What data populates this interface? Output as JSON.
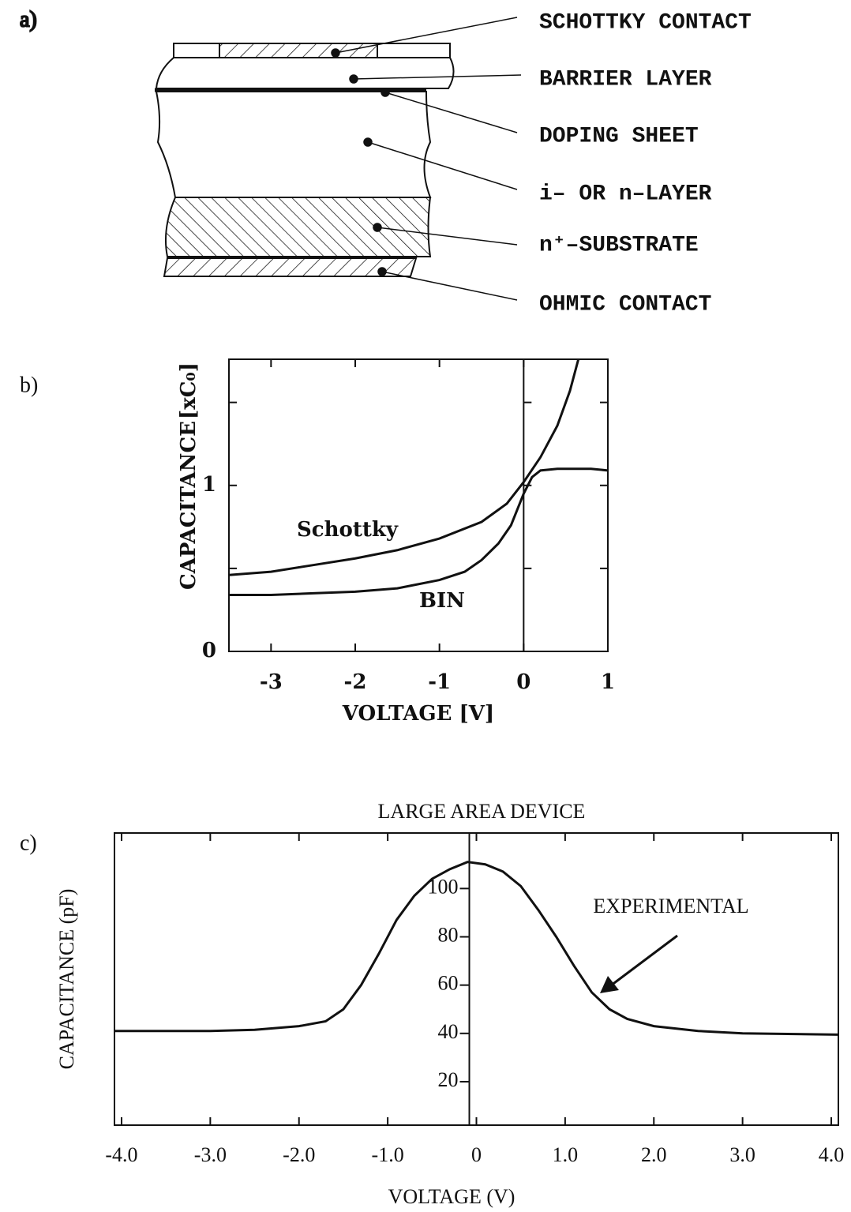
{
  "diagram": {
    "panel_label": "a)",
    "layers": [
      {
        "label": "SCHOTTKY CONTACT"
      },
      {
        "label": "BARRIER LAYER"
      },
      {
        "label": "DOPING SHEET"
      },
      {
        "label": "i– OR n–LAYER"
      },
      {
        "label": "n⁺–SUBSTRATE"
      },
      {
        "label": "OHMIC CONTACT"
      }
    ]
  },
  "chart_data": [
    {
      "type": "line",
      "panel_label": "b)",
      "xlabel": "VOLTAGE   [V]",
      "ylabel": "CAPACITANCE",
      "yunit": "[xC₀]",
      "xlim": [
        -3.5,
        1
      ],
      "ylim": [
        0,
        1.76
      ],
      "xticks": [
        -3,
        -2,
        -1,
        0,
        1
      ],
      "yticks": [
        0,
        1
      ],
      "yminor_ticks": [
        0.5,
        1.5
      ],
      "yaxis_at_x": 0,
      "ytick_position": "left",
      "series": [
        {
          "name": "Schottky",
          "color": "#111",
          "x": [
            -3.5,
            -3,
            -2.5,
            -2,
            -1.5,
            -1,
            -0.5,
            -0.2,
            0,
            0.2,
            0.4,
            0.55,
            0.65
          ],
          "values": [
            0.46,
            0.48,
            0.52,
            0.56,
            0.61,
            0.68,
            0.78,
            0.89,
            1.02,
            1.17,
            1.36,
            1.57,
            1.76
          ]
        },
        {
          "name": "BIN",
          "color": "#111",
          "x": [
            -3.5,
            -3,
            -2.5,
            -2,
            -1.5,
            -1,
            -0.7,
            -0.5,
            -0.3,
            -0.15,
            0,
            0.1,
            0.2,
            0.4,
            0.6,
            0.8,
            1
          ],
          "values": [
            0.34,
            0.34,
            0.35,
            0.36,
            0.38,
            0.43,
            0.48,
            0.55,
            0.65,
            0.76,
            0.95,
            1.05,
            1.09,
            1.1,
            1.1,
            1.1,
            1.09
          ]
        }
      ]
    },
    {
      "type": "line",
      "panel_label": "c)",
      "title": "LARGE AREA DEVICE",
      "xlabel": "VOLTAGE (V)",
      "ylabel": "CAPACITANCE (pF)",
      "xlim": [
        -4.08,
        4.08
      ],
      "ylim": [
        2,
        123
      ],
      "xticks": [
        {
          "value": -4,
          "label": "-4.0"
        },
        {
          "value": -3,
          "label": "-3.0"
        },
        {
          "value": -2,
          "label": "-2.0"
        },
        {
          "value": -1,
          "label": "-1.0"
        },
        0,
        {
          "value": 1,
          "label": "1.0"
        },
        {
          "value": 2,
          "label": "2.0"
        },
        {
          "value": 3,
          "label": "3.0"
        },
        {
          "value": 4,
          "label": "4.0"
        }
      ],
      "yticks": [
        20,
        40,
        60,
        80,
        100
      ],
      "yaxis_at_x": -0.08,
      "ytick_position": "axis",
      "annotations": [
        {
          "text": "EXPERIMENTAL"
        }
      ],
      "series": [
        {
          "name": "EXPERIMENTAL",
          "color": "#111",
          "x": [
            -4.08,
            -3,
            -2.5,
            -2,
            -1.7,
            -1.5,
            -1.3,
            -1.1,
            -0.9,
            -0.7,
            -0.5,
            -0.3,
            -0.1,
            0.1,
            0.3,
            0.5,
            0.7,
            0.9,
            1.1,
            1.3,
            1.5,
            1.7,
            2,
            2.5,
            3,
            4.08
          ],
          "values": [
            41,
            41,
            41.5,
            43,
            45,
            50,
            60,
            73,
            87,
            97,
            104,
            108,
            111,
            110,
            107,
            101,
            91,
            80,
            68,
            57,
            50,
            46,
            43,
            41,
            40,
            39.5
          ]
        }
      ]
    }
  ]
}
